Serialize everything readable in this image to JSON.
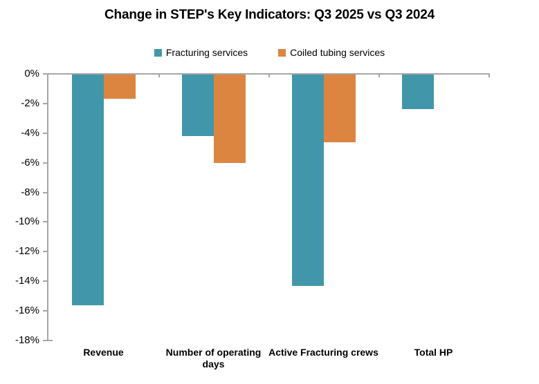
{
  "title": "Change in STEP's Key Indicators: Q3 2025 vs Q3 2024",
  "legend": {
    "items": [
      {
        "label": "Fracturing services",
        "color": "#4197A9"
      },
      {
        "label": "Coiled tubing services",
        "color": "#DC8540"
      }
    ]
  },
  "colors": {
    "axis": "#A6A6A6",
    "text": "#000000",
    "background": "#FFFFFF",
    "fracturing_series": "#4197A9",
    "coiled_tubing_series": "#DC8540"
  },
  "chart_data": {
    "type": "bar",
    "title": "Change in STEP's Key Indicators: Q3 2025 vs Q3 2024",
    "categories": [
      "Revenue",
      "Number of operating days",
      "Active Fracturing crews",
      "Total HP"
    ],
    "series": [
      {
        "name": "Fracturing services",
        "color": "#4197A9",
        "values": [
          -15.6,
          -4.2,
          -14.3,
          -2.4
        ]
      },
      {
        "name": "Coiled tubing services",
        "color": "#DC8540",
        "values": [
          -1.7,
          -6.0,
          -4.6,
          null
        ]
      }
    ],
    "xlabel": "",
    "ylabel": "",
    "ylim": [
      -18,
      0
    ],
    "yticks": [
      0,
      -2,
      -4,
      -6,
      -8,
      -10,
      -12,
      -14,
      -16,
      -18
    ],
    "ytick_labels": [
      "0%",
      "-2%",
      "-4%",
      "-6%",
      "-8%",
      "-10%",
      "-12%",
      "-14%",
      "-16%",
      "-18%"
    ],
    "unit": "percent",
    "grid": false,
    "legend_position": "top-center"
  }
}
